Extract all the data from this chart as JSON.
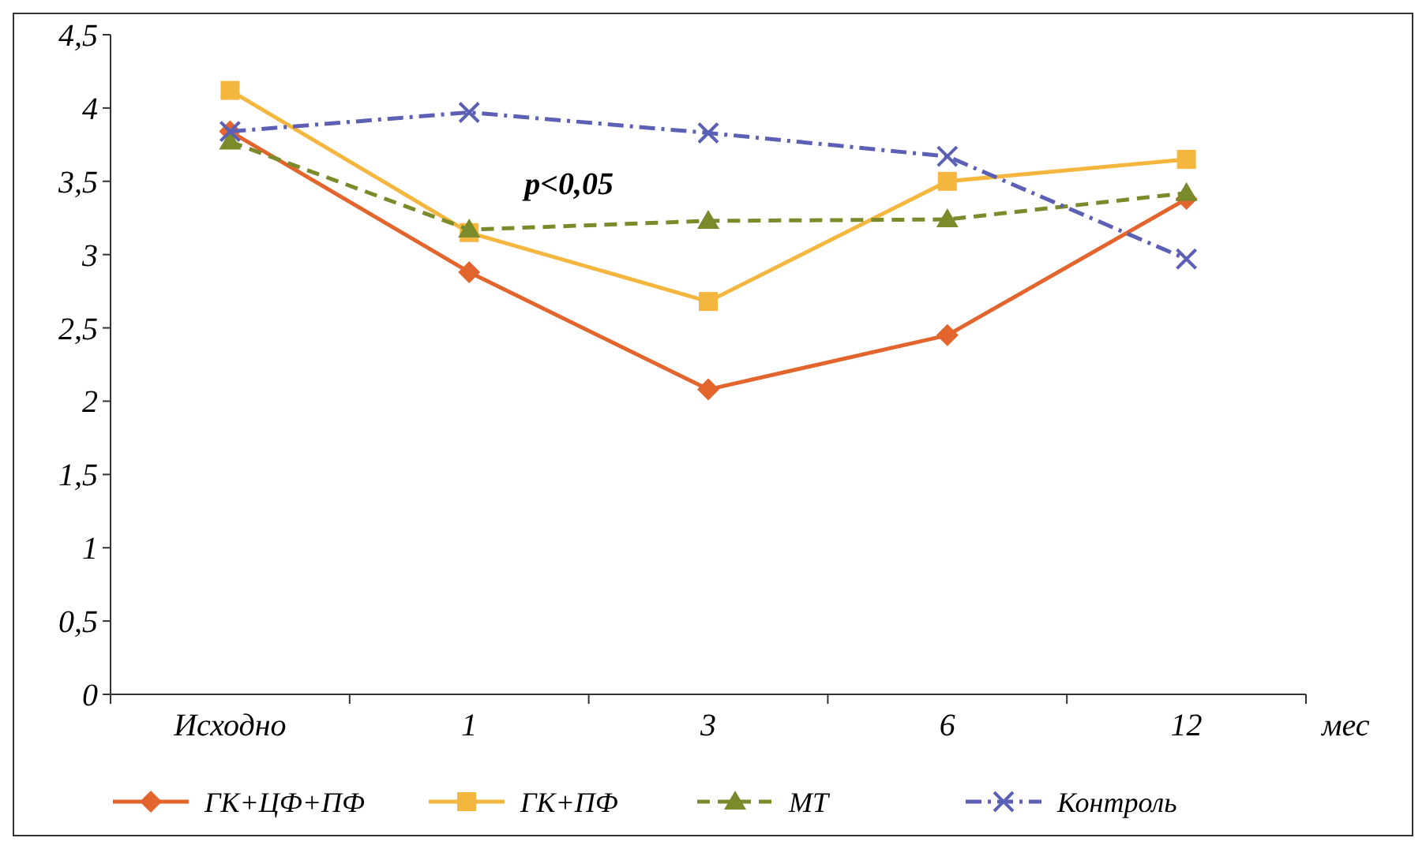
{
  "chart_data": {
    "type": "line",
    "xlabel": "мес",
    "categories": [
      "Исходно",
      "1",
      "3",
      "6",
      "12"
    ],
    "ylim": [
      0,
      4.5
    ],
    "yticks": [
      0,
      {
        "value": 0.5,
        "label": "0,5"
      },
      1,
      {
        "value": 1.5,
        "label": "1,5"
      },
      2,
      {
        "value": 2.5,
        "label": "2,5"
      },
      3,
      {
        "value": 3.5,
        "label": "3,5"
      },
      4,
      {
        "value": 4.5,
        "label": "4,5"
      }
    ],
    "grid": false,
    "legend": "bottom",
    "annotations": [
      "p<0,05"
    ],
    "series": [
      {
        "name": "ГК+ЦФ+ПФ",
        "color": "#e2652d",
        "marker": "diamond",
        "line_style": "solid",
        "values": [
          3.84,
          2.88,
          2.08,
          2.45,
          3.38
        ]
      },
      {
        "name": "ГК+ПФ",
        "color": "#f4b63f",
        "marker": "square",
        "line_style": "solid",
        "values": [
          4.12,
          3.15,
          2.68,
          3.5,
          3.65
        ]
      },
      {
        "name": "МТ",
        "color": "#7b8b2b",
        "marker": "triangle",
        "line_style": "dashed",
        "values": [
          3.77,
          3.17,
          3.23,
          3.24,
          3.42
        ]
      },
      {
        "name": "Контроль",
        "color": "#5b60b5",
        "marker": "cross",
        "line_style": "dashdot",
        "values": [
          3.84,
          3.97,
          3.83,
          3.67,
          2.97
        ]
      }
    ]
  }
}
